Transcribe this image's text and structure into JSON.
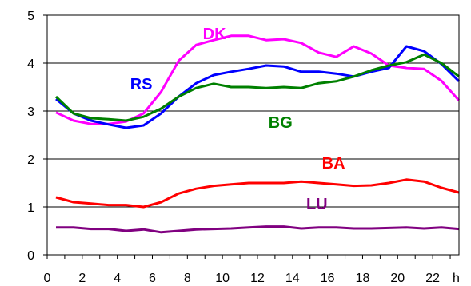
{
  "chart_data": {
    "type": "line",
    "title": "",
    "xlabel": "",
    "ylabel": "",
    "x_unit_label": "h",
    "xlim": [
      0,
      23.5
    ],
    "ylim": [
      0,
      5
    ],
    "x_ticks": [
      0,
      2,
      4,
      6,
      8,
      10,
      12,
      14,
      16,
      18,
      20,
      22
    ],
    "y_ticks": [
      0,
      1,
      2,
      3,
      4,
      5
    ],
    "grid": "horizontal",
    "legend": "inline labels",
    "series": [
      {
        "name": "DK",
        "color": "#ff00ff",
        "label_at": [
          10.2,
          4.5
        ],
        "x": [
          0.5,
          1.5,
          2.5,
          3.5,
          4.5,
          5.5,
          6.5,
          7.5,
          8.5,
          9.5,
          10.5,
          11.5,
          12.5,
          13.5,
          14.5,
          15.5,
          16.5,
          17.5,
          18.5,
          19.5,
          20.5,
          21.5,
          22.5,
          23.5
        ],
        "values": [
          2.97,
          2.8,
          2.73,
          2.73,
          2.78,
          2.95,
          3.4,
          4.05,
          4.38,
          4.48,
          4.57,
          4.57,
          4.48,
          4.5,
          4.42,
          4.22,
          4.13,
          4.35,
          4.2,
          3.95,
          3.9,
          3.88,
          3.63,
          3.22
        ]
      },
      {
        "name": "RS",
        "color": "#0000ff",
        "label_at": [
          6.0,
          3.45
        ],
        "x": [
          0.5,
          1.5,
          2.5,
          3.5,
          4.5,
          5.5,
          6.5,
          7.5,
          8.5,
          9.5,
          10.5,
          11.5,
          12.5,
          13.5,
          14.5,
          15.5,
          16.5,
          17.5,
          18.5,
          19.5,
          20.5,
          21.5,
          22.5,
          23.5
        ],
        "values": [
          3.25,
          2.95,
          2.8,
          2.72,
          2.65,
          2.7,
          2.95,
          3.3,
          3.58,
          3.75,
          3.82,
          3.88,
          3.95,
          3.93,
          3.82,
          3.82,
          3.78,
          3.72,
          3.82,
          3.9,
          4.35,
          4.25,
          3.98,
          3.62
        ]
      },
      {
        "name": "BG",
        "color": "#008000",
        "label_at": [
          14.0,
          2.65
        ],
        "x": [
          0.5,
          1.5,
          2.5,
          3.5,
          4.5,
          5.5,
          6.5,
          7.5,
          8.5,
          9.5,
          10.5,
          11.5,
          12.5,
          13.5,
          14.5,
          15.5,
          16.5,
          17.5,
          18.5,
          19.5,
          20.5,
          21.5,
          22.5,
          23.5
        ],
        "values": [
          3.3,
          2.95,
          2.85,
          2.83,
          2.8,
          2.88,
          3.05,
          3.3,
          3.48,
          3.57,
          3.5,
          3.5,
          3.48,
          3.5,
          3.48,
          3.58,
          3.62,
          3.72,
          3.85,
          3.95,
          4.02,
          4.18,
          4.0,
          3.72
        ]
      },
      {
        "name": "BA",
        "color": "#ff0000",
        "label_at": [
          17.0,
          1.8
        ],
        "x": [
          0.5,
          1.5,
          2.5,
          3.5,
          4.5,
          5.5,
          6.5,
          7.5,
          8.5,
          9.5,
          10.5,
          11.5,
          12.5,
          13.5,
          14.5,
          15.5,
          16.5,
          17.5,
          18.5,
          19.5,
          20.5,
          21.5,
          22.5,
          23.5
        ],
        "values": [
          1.2,
          1.1,
          1.07,
          1.04,
          1.04,
          1.0,
          1.1,
          1.28,
          1.38,
          1.44,
          1.47,
          1.5,
          1.5,
          1.5,
          1.53,
          1.5,
          1.47,
          1.44,
          1.45,
          1.5,
          1.57,
          1.53,
          1.4,
          1.3
        ]
      },
      {
        "name": "LU",
        "color": "#800080",
        "label_at": [
          16.0,
          0.95
        ],
        "x": [
          0.5,
          1.5,
          2.5,
          3.5,
          4.5,
          5.5,
          6.5,
          7.5,
          8.5,
          9.5,
          10.5,
          11.5,
          12.5,
          13.5,
          14.5,
          15.5,
          16.5,
          17.5,
          18.5,
          19.5,
          20.5,
          21.5,
          22.5,
          23.5
        ],
        "values": [
          0.57,
          0.57,
          0.54,
          0.54,
          0.5,
          0.53,
          0.47,
          0.5,
          0.53,
          0.54,
          0.55,
          0.57,
          0.59,
          0.59,
          0.55,
          0.57,
          0.57,
          0.55,
          0.55,
          0.56,
          0.57,
          0.55,
          0.57,
          0.54
        ]
      }
    ]
  }
}
